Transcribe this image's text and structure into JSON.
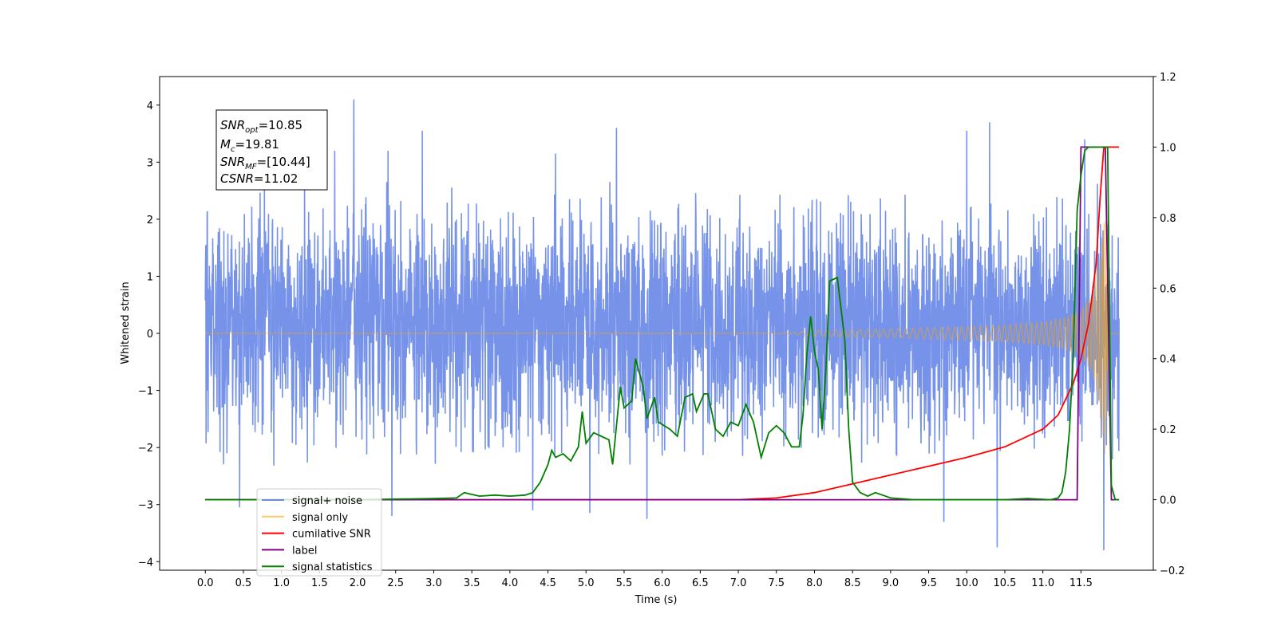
{
  "chart_data": {
    "type": "line",
    "xlabel": "Time (s)",
    "ylabel_left": "Whitened strain",
    "ylabel_right": "",
    "xlim": [
      -0.6,
      12.45
    ],
    "ylim_left": [
      -4.15,
      4.5
    ],
    "ylim_right": [
      -0.2,
      1.2
    ],
    "x_ticks": [
      "0.0",
      "0.5",
      "1.0",
      "1.5",
      "2.0",
      "2.5",
      "3.0",
      "3.5",
      "4.0",
      "4.5",
      "5.0",
      "5.5",
      "6.0",
      "6.5",
      "7.0",
      "7.5",
      "8.0",
      "8.5",
      "9.0",
      "9.5",
      "10.0",
      "10.5",
      "11.0",
      "11.5"
    ],
    "y_ticks_left": [
      "−4",
      "−3",
      "−2",
      "−1",
      "0",
      "1",
      "2",
      "3",
      "4"
    ],
    "y_ticks_right": [
      "−0.2",
      "0.0",
      "0.2",
      "0.4",
      "0.6",
      "0.8",
      "1.0",
      "1.2"
    ],
    "grid": false,
    "legend_position": "lower-left",
    "legend": [
      {
        "name": "signal+ noise",
        "color": "#4169e1"
      },
      {
        "name": "signal only",
        "color": "#ffa500"
      },
      {
        "name": "cumilative SNR",
        "color": "#ff0000"
      },
      {
        "name": "label",
        "color": "#800080"
      },
      {
        "name": "signal statistics",
        "color": "#008000"
      }
    ],
    "annotation": {
      "snr_opt_sym": "SNR",
      "snr_opt_sub": "opt",
      "snr_opt_val": "=10.85",
      "mc_sym": "M",
      "mc_sub": "c",
      "mc_val": "=19.81",
      "snr_mf_sym": "SNR",
      "snr_mf_sub": "MF",
      "snr_mf_val": "=[10.44]",
      "csnr_sym": "CSNR",
      "csnr_val": "=11.02"
    },
    "noise_series": {
      "name": "signal+ noise",
      "axis": "left",
      "x_range": [
        0.0,
        12.0
      ],
      "typical_range": [
        -1.8,
        2.2
      ],
      "peaks": [
        {
          "x": 1.95,
          "y": 4.1
        },
        {
          "x": 2.85,
          "y": 3.55
        },
        {
          "x": 5.4,
          "y": 3.6
        },
        {
          "x": 4.6,
          "y": 3.15
        },
        {
          "x": 10.3,
          "y": 3.7
        },
        {
          "x": 10.0,
          "y": 3.55
        },
        {
          "x": 11.55,
          "y": 3.4
        },
        {
          "x": 1.7,
          "y": 3.2
        },
        {
          "x": 2.4,
          "y": 3.2
        }
      ],
      "troughs": [
        {
          "x": 0.45,
          "y": -3.05
        },
        {
          "x": 2.45,
          "y": -3.2
        },
        {
          "x": 5.05,
          "y": -3.15
        },
        {
          "x": 5.8,
          "y": -3.25
        },
        {
          "x": 9.7,
          "y": -3.3
        },
        {
          "x": 10.4,
          "y": -3.75
        },
        {
          "x": 11.8,
          "y": -3.8
        },
        {
          "x": 4.3,
          "y": -3.1
        }
      ]
    },
    "signal_series": {
      "name": "signal only",
      "axis": "left",
      "x_range": [
        0.0,
        12.0
      ],
      "envelope": [
        [
          0.0,
          0.0
        ],
        [
          7.5,
          0.0
        ],
        [
          8.0,
          0.05
        ],
        [
          9.0,
          0.08
        ],
        [
          10.0,
          0.12
        ],
        [
          10.5,
          0.15
        ],
        [
          11.0,
          0.2
        ],
        [
          11.3,
          0.28
        ],
        [
          11.5,
          0.4
        ],
        [
          11.65,
          0.7
        ],
        [
          11.75,
          1.3
        ],
        [
          11.82,
          2.2
        ],
        [
          11.86,
          0.0
        ],
        [
          12.0,
          0.0
        ]
      ]
    },
    "cumulative_snr": {
      "name": "cumilative SNR",
      "axis": "right",
      "points": [
        [
          0.0,
          0.0
        ],
        [
          7.0,
          0.0
        ],
        [
          7.5,
          0.005
        ],
        [
          8.0,
          0.02
        ],
        [
          8.5,
          0.045
        ],
        [
          9.0,
          0.07
        ],
        [
          9.5,
          0.095
        ],
        [
          10.0,
          0.12
        ],
        [
          10.5,
          0.15
        ],
        [
          11.0,
          0.2
        ],
        [
          11.2,
          0.24
        ],
        [
          11.4,
          0.33
        ],
        [
          11.5,
          0.4
        ],
        [
          11.6,
          0.5
        ],
        [
          11.7,
          0.67
        ],
        [
          11.75,
          0.85
        ],
        [
          11.8,
          1.0
        ],
        [
          12.0,
          1.0
        ]
      ]
    },
    "label_series": {
      "name": "label",
      "axis": "right",
      "points": [
        [
          0.0,
          0.0
        ],
        [
          11.45,
          0.0
        ],
        [
          11.5,
          1.0
        ],
        [
          11.82,
          1.0
        ],
        [
          11.9,
          0.0
        ],
        [
          12.0,
          0.0
        ]
      ]
    },
    "statistics_series": {
      "name": "signal statistics",
      "axis": "right",
      "points": [
        [
          0.0,
          0.0
        ],
        [
          2.0,
          0.0
        ],
        [
          3.0,
          0.003
        ],
        [
          3.3,
          0.005
        ],
        [
          3.4,
          0.02
        ],
        [
          3.6,
          0.01
        ],
        [
          3.8,
          0.013
        ],
        [
          4.0,
          0.01
        ],
        [
          4.2,
          0.013
        ],
        [
          4.3,
          0.02
        ],
        [
          4.4,
          0.05
        ],
        [
          4.5,
          0.1
        ],
        [
          4.55,
          0.14
        ],
        [
          4.6,
          0.12
        ],
        [
          4.7,
          0.13
        ],
        [
          4.8,
          0.11
        ],
        [
          4.9,
          0.15
        ],
        [
          4.95,
          0.25
        ],
        [
          5.0,
          0.16
        ],
        [
          5.1,
          0.19
        ],
        [
          5.2,
          0.18
        ],
        [
          5.3,
          0.17
        ],
        [
          5.35,
          0.1
        ],
        [
          5.45,
          0.32
        ],
        [
          5.5,
          0.26
        ],
        [
          5.6,
          0.28
        ],
        [
          5.65,
          0.4
        ],
        [
          5.75,
          0.32
        ],
        [
          5.8,
          0.23
        ],
        [
          5.9,
          0.29
        ],
        [
          5.95,
          0.22
        ],
        [
          6.1,
          0.2
        ],
        [
          6.2,
          0.18
        ],
        [
          6.3,
          0.29
        ],
        [
          6.4,
          0.3
        ],
        [
          6.45,
          0.25
        ],
        [
          6.55,
          0.3
        ],
        [
          6.6,
          0.3
        ],
        [
          6.7,
          0.2
        ],
        [
          6.8,
          0.18
        ],
        [
          6.9,
          0.22
        ],
        [
          7.0,
          0.21
        ],
        [
          7.1,
          0.27
        ],
        [
          7.2,
          0.22
        ],
        [
          7.3,
          0.12
        ],
        [
          7.4,
          0.19
        ],
        [
          7.5,
          0.21
        ],
        [
          7.6,
          0.19
        ],
        [
          7.7,
          0.15
        ],
        [
          7.8,
          0.15
        ],
        [
          7.85,
          0.24
        ],
        [
          7.9,
          0.41
        ],
        [
          7.95,
          0.52
        ],
        [
          8.0,
          0.42
        ],
        [
          8.05,
          0.37
        ],
        [
          8.1,
          0.2
        ],
        [
          8.15,
          0.37
        ],
        [
          8.2,
          0.62
        ],
        [
          8.3,
          0.63
        ],
        [
          8.4,
          0.45
        ],
        [
          8.45,
          0.2
        ],
        [
          8.5,
          0.05
        ],
        [
          8.6,
          0.02
        ],
        [
          8.7,
          0.01
        ],
        [
          8.8,
          0.02
        ],
        [
          9.0,
          0.005
        ],
        [
          9.3,
          0.0
        ],
        [
          10.5,
          0.0
        ],
        [
          10.8,
          0.003
        ],
        [
          11.1,
          0.0
        ],
        [
          11.2,
          0.005
        ],
        [
          11.25,
          0.02
        ],
        [
          11.3,
          0.08
        ],
        [
          11.35,
          0.2
        ],
        [
          11.4,
          0.42
        ],
        [
          11.45,
          0.82
        ],
        [
          11.5,
          0.92
        ],
        [
          11.55,
          0.99
        ],
        [
          11.6,
          1.0
        ],
        [
          11.85,
          1.0
        ],
        [
          11.9,
          0.04
        ],
        [
          11.95,
          0.0
        ],
        [
          12.0,
          0.0
        ]
      ]
    }
  }
}
